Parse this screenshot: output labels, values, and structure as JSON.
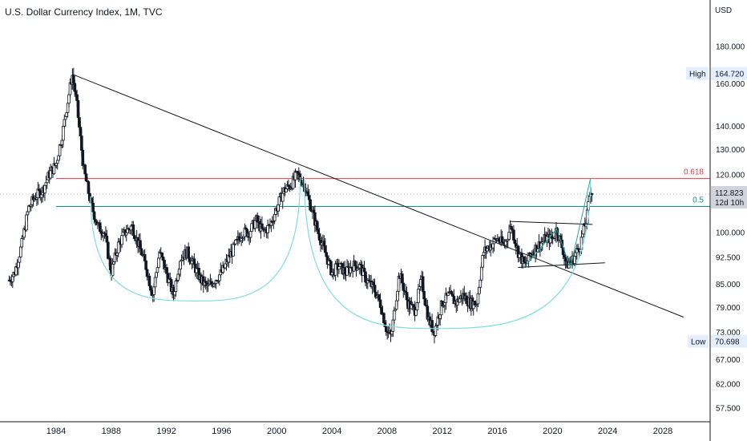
{
  "header": {
    "title": "U.S. Dollar Currency Index, 1M, TVC"
  },
  "chart_data": {
    "type": "candlestick",
    "title": "U.S. Dollar Currency Index, 1M, TVC",
    "currency_label": "USD",
    "y_scale": "log",
    "ylim": [
      55.5,
      196
    ],
    "xlim": [
      1980.6,
      2031.0
    ],
    "y_ticks": [
      {
        "value": 180,
        "label": "180.000"
      },
      {
        "value": 160,
        "label": "160.000"
      },
      {
        "value": 140,
        "label": "140.000"
      },
      {
        "value": 130,
        "label": "130.000"
      },
      {
        "value": 120,
        "label": "120.000"
      },
      {
        "value": 100,
        "label": "100.000"
      },
      {
        "value": 92.5,
        "label": "92.500"
      },
      {
        "value": 85,
        "label": "85.000"
      },
      {
        "value": 79,
        "label": "79.000"
      },
      {
        "value": 73,
        "label": "73.000"
      },
      {
        "value": 67,
        "label": "67.000"
      },
      {
        "value": 62,
        "label": "62.000"
      },
      {
        "value": 57.5,
        "label": "57.500"
      }
    ],
    "x_ticks": [
      "1984",
      "1988",
      "1992",
      "1996",
      "2000",
      "2004",
      "2008",
      "2012",
      "2016",
      "2020",
      "2024",
      "2028"
    ],
    "series_path": [
      [
        1980.6,
        86
      ],
      [
        1981.0,
        88
      ],
      [
        1981.5,
        96
      ],
      [
        1982.0,
        108
      ],
      [
        1982.5,
        112
      ],
      [
        1983.0,
        114
      ],
      [
        1983.5,
        120
      ],
      [
        1984.0,
        124
      ],
      [
        1984.5,
        138
      ],
      [
        1985.17,
        164.7
      ],
      [
        1985.5,
        150
      ],
      [
        1986.0,
        122
      ],
      [
        1986.5,
        110
      ],
      [
        1987.0,
        102
      ],
      [
        1987.5,
        100
      ],
      [
        1988.0,
        88
      ],
      [
        1988.5,
        96
      ],
      [
        1989.0,
        100
      ],
      [
        1989.5,
        102
      ],
      [
        1990.0,
        96
      ],
      [
        1990.5,
        90
      ],
      [
        1991.0,
        82
      ],
      [
        1991.5,
        94
      ],
      [
        1992.0,
        88
      ],
      [
        1992.5,
        82
      ],
      [
        1993.0,
        92
      ],
      [
        1993.5,
        94
      ],
      [
        1994.0,
        90
      ],
      [
        1994.5,
        86
      ],
      [
        1995.0,
        84
      ],
      [
        1995.5,
        86
      ],
      [
        1996.0,
        88
      ],
      [
        1996.5,
        92
      ],
      [
        1997.0,
        96
      ],
      [
        1997.5,
        100
      ],
      [
        1998.0,
        100
      ],
      [
        1998.5,
        104
      ],
      [
        1999.0,
        100
      ],
      [
        1999.5,
        102
      ],
      [
        2000.0,
        108
      ],
      [
        2000.5,
        114
      ],
      [
        2001.0,
        116
      ],
      [
        2001.5,
        120
      ],
      [
        2002.0,
        116
      ],
      [
        2002.5,
        108
      ],
      [
        2003.0,
        100
      ],
      [
        2003.5,
        94
      ],
      [
        2004.0,
        88
      ],
      [
        2004.5,
        90
      ],
      [
        2005.0,
        88
      ],
      [
        2005.5,
        90
      ],
      [
        2006.0,
        90
      ],
      [
        2006.5,
        86
      ],
      [
        2007.0,
        84
      ],
      [
        2007.5,
        80
      ],
      [
        2008.0,
        73
      ],
      [
        2008.3,
        72
      ],
      [
        2008.9,
        88
      ],
      [
        2009.5,
        80
      ],
      [
        2010.0,
        78
      ],
      [
        2010.5,
        86
      ],
      [
        2011.0,
        76
      ],
      [
        2011.4,
        73
      ],
      [
        2012.0,
        80
      ],
      [
        2012.5,
        82
      ],
      [
        2013.0,
        80
      ],
      [
        2013.5,
        82
      ],
      [
        2014.0,
        80
      ],
      [
        2014.5,
        80
      ],
      [
        2015.0,
        94
      ],
      [
        2015.5,
        96
      ],
      [
        2016.0,
        98
      ],
      [
        2016.5,
        96
      ],
      [
        2017.0,
        102
      ],
      [
        2017.5,
        94
      ],
      [
        2018.0,
        90
      ],
      [
        2018.5,
        94
      ],
      [
        2019.0,
        96
      ],
      [
        2019.5,
        98
      ],
      [
        2020.0,
        98
      ],
      [
        2020.3,
        101
      ],
      [
        2020.8,
        94
      ],
      [
        2021.0,
        90
      ],
      [
        2021.5,
        92
      ],
      [
        2022.0,
        96
      ],
      [
        2022.5,
        105
      ],
      [
        2022.75,
        114.7
      ],
      [
        2022.9,
        112.8
      ]
    ],
    "last_value": "112.823",
    "countdown": "12d 10h",
    "high": {
      "label": "High",
      "value": "164.720"
    },
    "low": {
      "label": "Low",
      "value": "70.698"
    },
    "fib_levels": [
      {
        "label": "0.618",
        "value": 118.5,
        "color": "#f23645"
      },
      {
        "label": "0.5",
        "value": 108.5,
        "color": "#089981"
      }
    ],
    "trendline": [
      [
        1985.17,
        164.7
      ],
      [
        2029.5,
        76.5
      ]
    ],
    "arcs": [
      {
        "from": [
          1986.5,
          112
        ],
        "bottom": [
          1994.0,
          80.5
        ],
        "to": [
          2001.7,
          119
        ],
        "color": "#7fdde0"
      },
      {
        "from": [
          2002.0,
          119
        ],
        "bottom": [
          2011.5,
          73.8
        ],
        "to": [
          2022.75,
          118.5
        ],
        "color": "#7fdde0"
      }
    ],
    "triangle_lines": [
      [
        [
          2016.9,
          103.5
        ],
        [
          2022.9,
          102.5
        ]
      ],
      [
        [
          2017.5,
          89.5
        ],
        [
          2023.8,
          90.8
        ]
      ]
    ],
    "harmonic_legs": [
      [
        [
          2018.0,
          89.8
        ],
        [
          2020.3,
          101.0
        ],
        [
          2021.3,
          89.5
        ],
        [
          2022.75,
          118.5
        ]
      ],
      [
        [
          2018.0,
          89.8
        ],
        [
          2020.3,
          101.0
        ]
      ]
    ],
    "colors": {
      "candle": "#131722",
      "trendline": "#131722",
      "arc": "#7fdde0",
      "harmonic": "#26a69a",
      "axis_tag_bg": "#e3effd",
      "last_price_bg": "#d1d4dc"
    }
  }
}
